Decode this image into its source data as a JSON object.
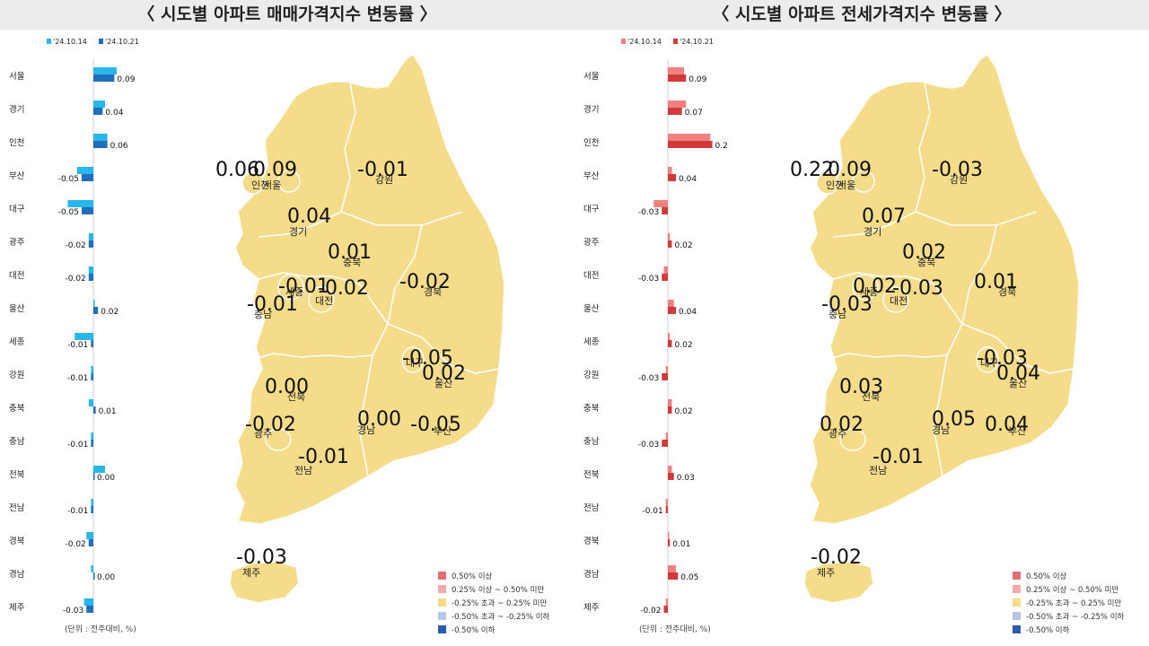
{
  "panels": [
    {
      "title": "〈 시도별 아파트 매매가격지수 변동률 〉",
      "unit": "(단위 : 전주대비, %)",
      "legend_dates": [
        "'24.10.14",
        "'24.10.21"
      ],
      "colors": {
        "prev": "#29b6e8",
        "curr": "#1f6fba"
      },
      "legend": [
        {
          "label": "0.50% 이상",
          "color": "#e07070"
        },
        {
          "label": "0.25% 이상 ~ 0.50% 미만",
          "color": "#f2aaaa"
        },
        {
          "label": "-0.25% 초과 ~ 0.25% 미만",
          "color": "#f5dc8a"
        },
        {
          "label": "-0.50% 초과 ~ -0.25% 이하",
          "color": "#b4c6e4"
        },
        {
          "label": "-0.50% 이하",
          "color": "#2a5cab"
        }
      ],
      "chart_data": {
        "type": "bar",
        "categories": [
          "서울",
          "경기",
          "인천",
          "부산",
          "대구",
          "광주",
          "대전",
          "울산",
          "세종",
          "강원",
          "충북",
          "충남",
          "전북",
          "전남",
          "경북",
          "경남",
          "제주"
        ],
        "series": [
          {
            "name": "'24.10.14",
            "values": [
              0.1,
              0.05,
              0.06,
              -0.07,
              -0.11,
              -0.02,
              -0.02,
              0.0,
              -0.08,
              -0.01,
              -0.02,
              -0.01,
              0.05,
              -0.01,
              -0.03,
              -0.01,
              -0.04
            ]
          },
          {
            "name": "'24.10.21",
            "values": [
              0.09,
              0.04,
              0.06,
              -0.05,
              -0.05,
              -0.02,
              -0.02,
              0.02,
              -0.01,
              -0.01,
              0.01,
              -0.01,
              0.0,
              -0.01,
              -0.02,
              0.0,
              -0.03
            ]
          }
        ],
        "data_labels": [
          "0.09",
          "0.04",
          "0.06",
          "-0.05",
          "-0.05",
          "-0.02",
          "-0.02",
          "0.02",
          "-0.01",
          "-0.01",
          "0.01",
          "-0.01",
          "0.00",
          "-0.01",
          "-0.02",
          "0.00",
          "-0.03"
        ],
        "xlim": [
          -0.12,
          0.12
        ]
      },
      "map_labels": [
        {
          "region": "인천",
          "value": "0.06"
        },
        {
          "region": "서울",
          "value": "0.09"
        },
        {
          "region": "강원",
          "value": "-0.01"
        },
        {
          "region": "경기",
          "value": "0.04"
        },
        {
          "region": "충북",
          "value": "0.01"
        },
        {
          "region": "세종",
          "value": "-0.01"
        },
        {
          "region": "대전",
          "value": "-0.02"
        },
        {
          "region": "충남",
          "value": "-0.01"
        },
        {
          "region": "경북",
          "value": "-0.02"
        },
        {
          "region": "대구",
          "value": "-0.05"
        },
        {
          "region": "전북",
          "value": "0.00"
        },
        {
          "region": "울산",
          "value": "0.02"
        },
        {
          "region": "광주",
          "value": "-0.02"
        },
        {
          "region": "경남",
          "value": "0.00"
        },
        {
          "region": "부산",
          "value": "-0.05"
        },
        {
          "region": "전남",
          "value": "-0.01"
        },
        {
          "region": "제주",
          "value": "-0.03"
        }
      ]
    },
    {
      "title": "〈 시도별 아파트 전세가격지수 변동률 〉",
      "unit": "(단위 : 전주대비, %)",
      "legend_dates": [
        "'24.10.14",
        "'24.10.21"
      ],
      "colors": {
        "prev": "#f08080",
        "curr": "#d23a3a"
      },
      "legend": [
        {
          "label": "0.50% 이상",
          "color": "#e07070"
        },
        {
          "label": "0.25% 이상 ~ 0.50% 미만",
          "color": "#f2aaaa"
        },
        {
          "label": "-0.25% 초과 ~ 0.25% 미만",
          "color": "#f5dc8a"
        },
        {
          "label": "-0.50% 초과 ~ -0.25% 이하",
          "color": "#b4c6e4"
        },
        {
          "label": "-0.50% 이하",
          "color": "#2a5cab"
        }
      ],
      "chart_data": {
        "type": "bar",
        "categories": [
          "서울",
          "경기",
          "인천",
          "부산",
          "대구",
          "광주",
          "대전",
          "울산",
          "세종",
          "강원",
          "충북",
          "충남",
          "전북",
          "전남",
          "경북",
          "경남",
          "제주"
        ],
        "series": [
          {
            "name": "'24.10.14",
            "values": [
              0.08,
              0.09,
              0.21,
              0.02,
              -0.07,
              0.01,
              -0.02,
              0.03,
              0.01,
              -0.01,
              0.02,
              -0.01,
              0.02,
              -0.01,
              0.0,
              0.04,
              -0.01
            ]
          },
          {
            "name": "'24.10.21",
            "values": [
              0.09,
              0.07,
              0.22,
              0.04,
              -0.03,
              0.02,
              -0.03,
              0.04,
              0.02,
              -0.03,
              0.02,
              -0.03,
              0.03,
              -0.01,
              0.01,
              0.05,
              -0.02
            ]
          }
        ],
        "data_labels": [
          "0.09",
          "0.07",
          "0.22",
          "0.04",
          "-0.03",
          "0.02",
          "-0.03",
          "0.04",
          "0.02",
          "-0.03",
          "0.02",
          "-0.03",
          "0.03",
          "-0.01",
          "0.01",
          "0.05",
          "-0.02"
        ],
        "xlim": [
          -0.1,
          0.25
        ]
      },
      "map_labels": [
        {
          "region": "인천",
          "value": "0.22"
        },
        {
          "region": "서울",
          "value": "0.09"
        },
        {
          "region": "강원",
          "value": "-0.03"
        },
        {
          "region": "경기",
          "value": "0.07"
        },
        {
          "region": "충북",
          "value": "0.02"
        },
        {
          "region": "세종",
          "value": "0.02"
        },
        {
          "region": "대전",
          "value": "-0.03"
        },
        {
          "region": "충남",
          "value": "-0.03"
        },
        {
          "region": "경북",
          "value": "0.01"
        },
        {
          "region": "대구",
          "value": "-0.03"
        },
        {
          "region": "전북",
          "value": "0.03"
        },
        {
          "region": "울산",
          "value": "0.04"
        },
        {
          "region": "광주",
          "value": "0.02"
        },
        {
          "region": "경남",
          "value": "0.05"
        },
        {
          "region": "부산",
          "value": "0.04"
        },
        {
          "region": "전남",
          "value": "-0.01"
        },
        {
          "region": "제주",
          "value": "-0.02"
        }
      ]
    }
  ]
}
